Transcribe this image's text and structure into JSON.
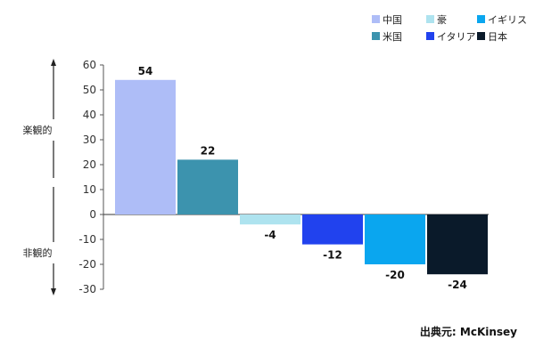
{
  "chart_data": {
    "type": "bar",
    "categories": [
      "中国",
      "米国",
      "豪",
      "イタリア",
      "イギリス",
      "日本"
    ],
    "series": [
      {
        "values": [
          54,
          22,
          -4,
          -12,
          -20,
          -24
        ],
        "colors": [
          "#aebdf7",
          "#3c93ae",
          "#aee3ef",
          "#2142ee",
          "#0aa6ef",
          "#0a1a2a"
        ]
      }
    ],
    "data_labels": [
      "54",
      "22",
      "-4",
      "-12",
      "-20",
      "-24"
    ],
    "ylim": [
      -30,
      60
    ],
    "yticks": [
      60,
      50,
      40,
      30,
      20,
      10,
      0,
      -10,
      -20,
      -30
    ],
    "grid": false,
    "legend": {
      "placement": "top-right",
      "entries": [
        {
          "label": "中国",
          "color": "#aebdf7"
        },
        {
          "label": "豪",
          "color": "#aee3ef"
        },
        {
          "label": "イギリス",
          "color": "#0aa6ef"
        },
        {
          "label": "米国",
          "color": "#3c93ae"
        },
        {
          "label": "イタリア",
          "color": "#2142ee"
        },
        {
          "label": "日本",
          "color": "#0a1a2a"
        }
      ]
    },
    "side_labels": {
      "positive": "楽観的",
      "negative": "非観的"
    },
    "source": "出典元: McKinsey"
  }
}
